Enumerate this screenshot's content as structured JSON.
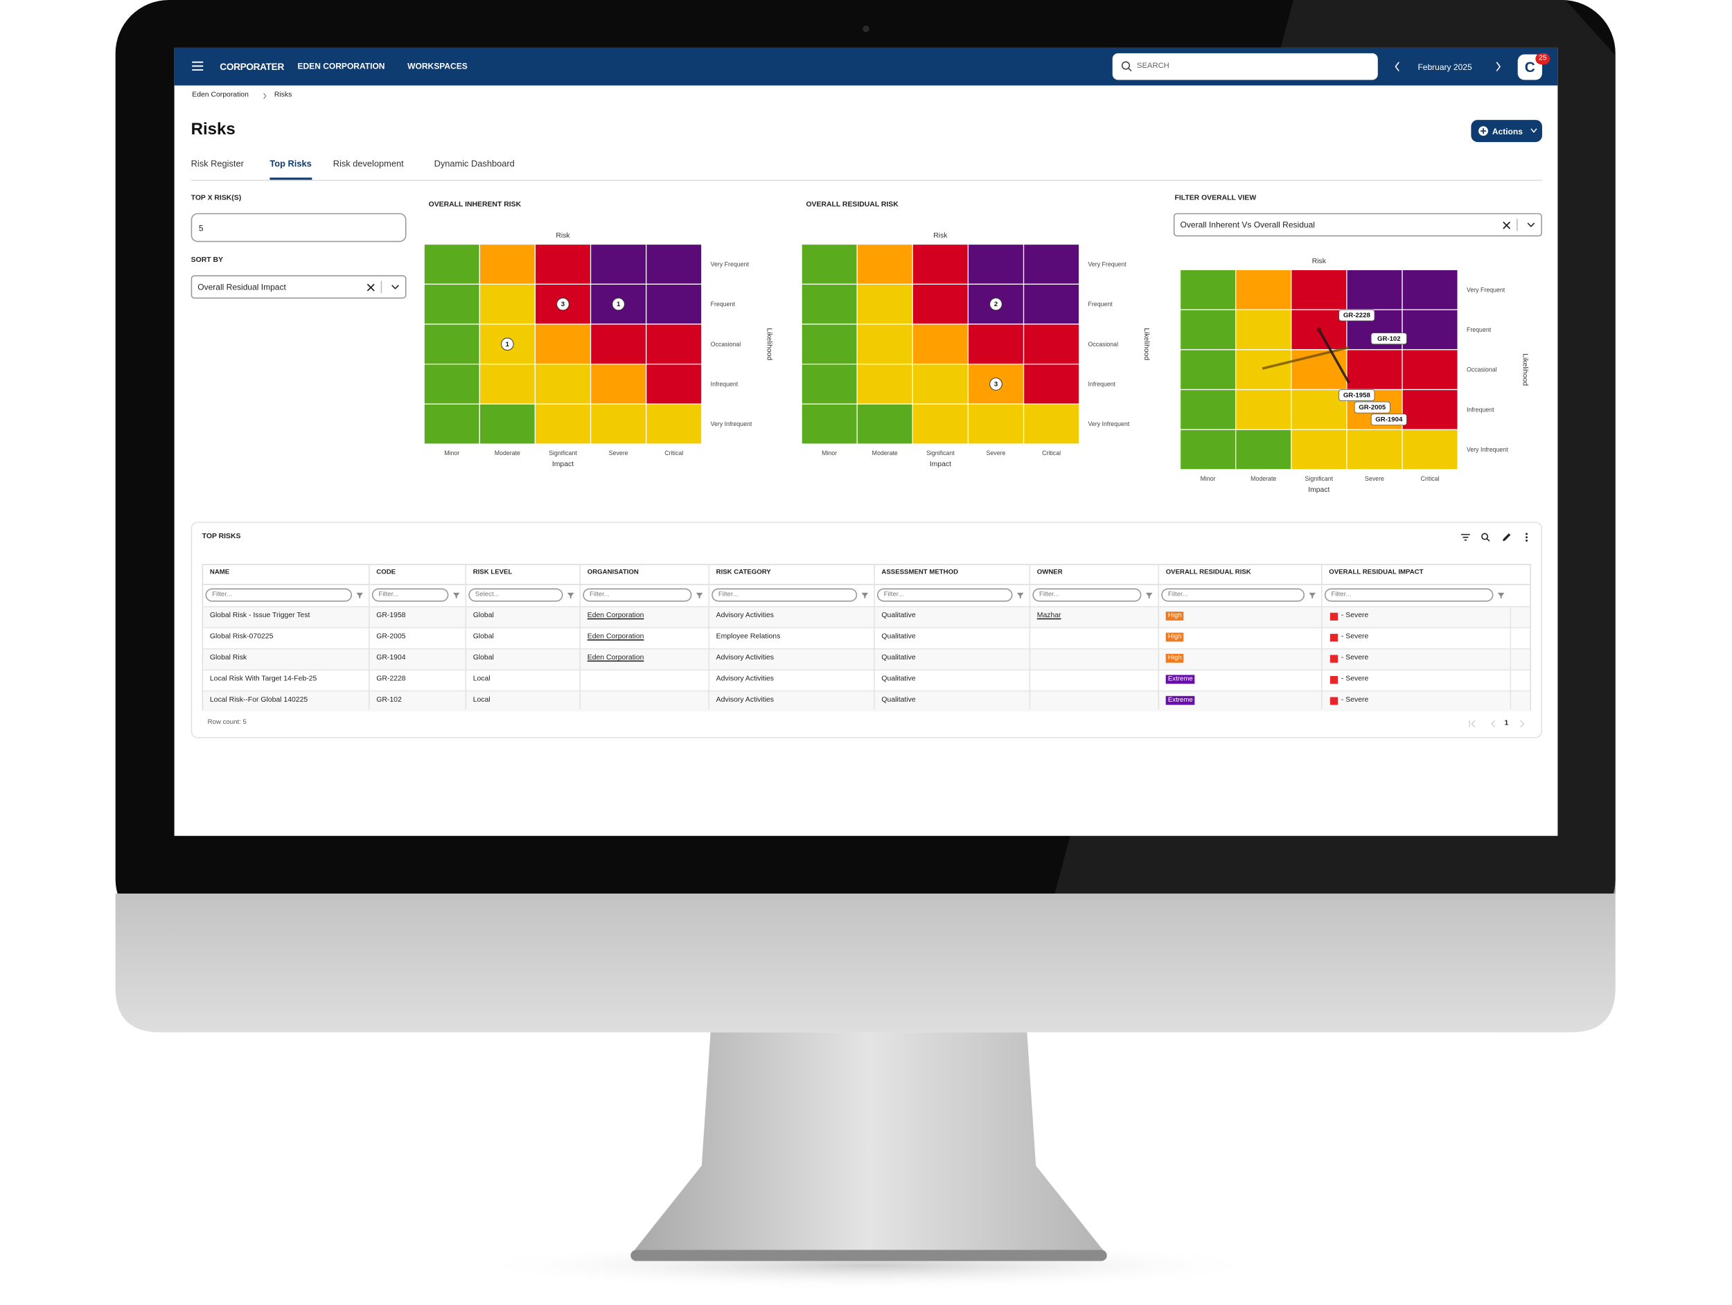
{
  "nav": {
    "brand": "CORPORATER",
    "organisation": "EDEN CORPORATION",
    "workspaces": "WORKSPACES",
    "search": "SEARCH",
    "period": "February 2025",
    "avatar": "C",
    "notifications": "25"
  },
  "breadcrumb": [
    "Eden Corporation",
    "Risks"
  ],
  "page": {
    "title": "Risks",
    "actions": "Actions"
  },
  "tabs": {
    "items": [
      "Risk Register",
      "Top Risks",
      "Risk development",
      "Dynamic Dashboard"
    ],
    "active": 1
  },
  "filters": {
    "top_x_label": "TOP X RISK(S)",
    "top_x_value": "5",
    "sort_by_label": "SORT BY",
    "sort_by_value": "Overall Residual Impact",
    "view_label": "FILTER OVERALL VIEW",
    "view_value": "Overall Inherent Vs Overall Residual"
  },
  "heatmaps": [
    {
      "title": "OVERALL INHERENT RISK",
      "top_label": "Risk",
      "x_label": "Impact",
      "y_label": "Likelihood",
      "impacts": [
        "Minor",
        "Moderate",
        "Significant",
        "Severe",
        "Critical"
      ],
      "likelihoods": [
        "Very Frequent",
        "Frequent",
        "Occasional",
        "Infrequent",
        "Very Infrequent"
      ],
      "cells": [
        [
          "#5aab1e",
          "#ff9f00",
          "#d4001f",
          "#5b0b78",
          "#5b0b78"
        ],
        [
          "#5aab1e",
          "#f2cc00",
          "#d4001f",
          "#5b0b78",
          "#5b0b78"
        ],
        [
          "#5aab1e",
          "#f2cc00",
          "#ff9f00",
          "#d4001f",
          "#d4001f"
        ],
        [
          "#5aab1e",
          "#f2cc00",
          "#f2cc00",
          "#ff9f00",
          "#d4001f"
        ],
        [
          "#5aab1e",
          "#5aab1e",
          "#f2cc00",
          "#f2cc00",
          "#f2cc00"
        ]
      ],
      "counts": [
        [
          null,
          null,
          null,
          null,
          null
        ],
        [
          null,
          null,
          3,
          1,
          null
        ],
        [
          null,
          1,
          null,
          null,
          null
        ],
        [
          null,
          null,
          null,
          null,
          null
        ],
        [
          null,
          null,
          null,
          null,
          null
        ]
      ]
    },
    {
      "title": "OVERALL RESIDUAL RISK",
      "top_label": "Risk",
      "x_label": "Impact",
      "y_label": "Likelihood",
      "impacts": [
        "Minor",
        "Moderate",
        "Significant",
        "Severe",
        "Critical"
      ],
      "likelihoods": [
        "Very Frequent",
        "Frequent",
        "Occasional",
        "Infrequent",
        "Very Infrequent"
      ],
      "cells": [
        [
          "#5aab1e",
          "#ff9f00",
          "#d4001f",
          "#5b0b78",
          "#5b0b78"
        ],
        [
          "#5aab1e",
          "#f2cc00",
          "#d4001f",
          "#5b0b78",
          "#5b0b78"
        ],
        [
          "#5aab1e",
          "#f2cc00",
          "#ff9f00",
          "#d4001f",
          "#d4001f"
        ],
        [
          "#5aab1e",
          "#f2cc00",
          "#f2cc00",
          "#ff9f00",
          "#d4001f"
        ],
        [
          "#5aab1e",
          "#5aab1e",
          "#f2cc00",
          "#f2cc00",
          "#f2cc00"
        ]
      ],
      "counts": [
        [
          null,
          null,
          null,
          null,
          null
        ],
        [
          null,
          null,
          null,
          2,
          null
        ],
        [
          null,
          null,
          null,
          null,
          null
        ],
        [
          null,
          null,
          null,
          3,
          null
        ],
        [
          null,
          null,
          null,
          null,
          null
        ]
      ]
    },
    {
      "top_label": "Risk",
      "x_label": "Impact",
      "y_label": "Likelihood",
      "impacts": [
        "Minor",
        "Moderate",
        "Significant",
        "Severe",
        "Critical"
      ],
      "likelihoods": [
        "Very Frequent",
        "Frequent",
        "Occasional",
        "Infrequent",
        "Very Infrequent"
      ],
      "cells": [
        [
          "#5aab1e",
          "#ff9f00",
          "#d4001f",
          "#5b0b78",
          "#5b0b78"
        ],
        [
          "#5aab1e",
          "#f2cc00",
          "#d4001f",
          "#5b0b78",
          "#5b0b78"
        ],
        [
          "#5aab1e",
          "#f2cc00",
          "#ff9f00",
          "#d4001f",
          "#d4001f"
        ],
        [
          "#5aab1e",
          "#f2cc00",
          "#f2cc00",
          "#ff9f00",
          "#d4001f"
        ],
        [
          "#5aab1e",
          "#5aab1e",
          "#f2cc00",
          "#f2cc00",
          "#f2cc00"
        ]
      ],
      "annotations": [
        "GR-2228",
        "GR-102",
        "GR-1958",
        "GR-2005",
        "GR-1904"
      ]
    }
  ],
  "table": {
    "title": "TOP RISKS",
    "columns": [
      "NAME",
      "CODE",
      "RISK LEVEL",
      "ORGANISATION",
      "RISK CATEGORY",
      "ASSESSMENT METHOD",
      "OWNER",
      "OVERALL RESIDUAL RISK",
      "OVERALL RESIDUAL IMPACT"
    ],
    "filter_placeholders": [
      "Filter...",
      "Filter...",
      "Select...",
      "Filter...",
      "Filter...",
      "Filter...",
      "Filter...",
      "Filter...",
      "Filter..."
    ],
    "rows": [
      [
        "Global Risk - Issue Trigger Test",
        "GR-1958",
        "Global",
        "Eden Corporation",
        "Advisory Activities",
        "Qualitative",
        "Mazhar",
        {
          "text": "High",
          "color": "#f07a1d"
        },
        {
          "text": "- Severe",
          "color": "#e8262a"
        }
      ],
      [
        "Global Risk-070225",
        "GR-2005",
        "Global",
        "Eden Corporation",
        "Employee Relations",
        "Qualitative",
        null,
        {
          "text": "High",
          "color": "#f07a1d"
        },
        {
          "text": "- Severe",
          "color": "#e8262a"
        }
      ],
      [
        "Global Risk",
        "GR-1904",
        "Global",
        "Eden Corporation",
        "Advisory Activities",
        "Qualitative",
        null,
        {
          "text": "High",
          "color": "#f07a1d"
        },
        {
          "text": "- Severe",
          "color": "#e8262a"
        }
      ],
      [
        "Local Risk With Target 14-Feb-25",
        "GR-2228",
        "Local",
        null,
        "Advisory Activities",
        "Qualitative",
        null,
        {
          "text": "Extreme",
          "color": "#6a0dad"
        },
        {
          "text": "- Severe",
          "color": "#e8262a"
        }
      ],
      [
        "Local Risk--For Global 140225",
        "GR-102",
        "Local",
        null,
        "Advisory Activities",
        "Qualitative",
        null,
        {
          "text": "Extreme",
          "color": "#6a0dad"
        },
        {
          "text": "- Severe",
          "color": "#e8262a"
        }
      ]
    ],
    "row_count": "Row count: 5",
    "page": "1"
  }
}
